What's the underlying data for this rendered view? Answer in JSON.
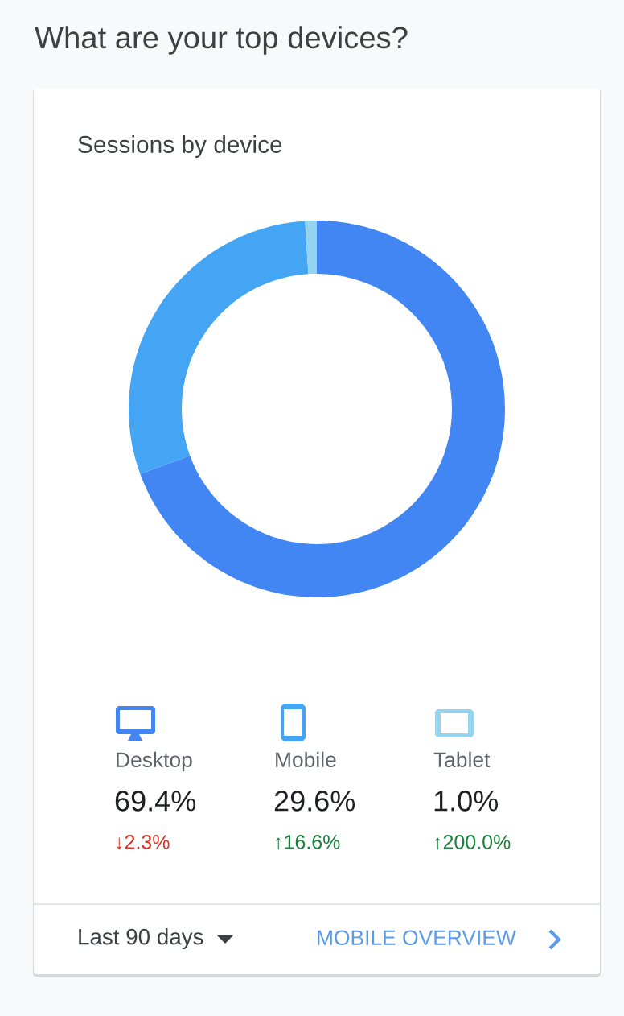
{
  "chart_data": {
    "type": "donut",
    "title": "What are your top devices?",
    "subtitle": "Sessions by device",
    "categories": [
      "Desktop",
      "Mobile",
      "Tablet"
    ],
    "values": [
      69.4,
      29.6,
      1.0
    ],
    "colors": [
      "#4286f4",
      "#45a5f5",
      "#95d4ee"
    ],
    "value_labels": [
      "69.4%",
      "29.6%",
      "1.0%"
    ],
    "annotations": [
      "↓2.3%",
      "↑16.6%",
      "↑200.0%",
      "Last 90 days",
      "MOBILE OVERVIEW"
    ],
    "legend": "bottom"
  }
}
